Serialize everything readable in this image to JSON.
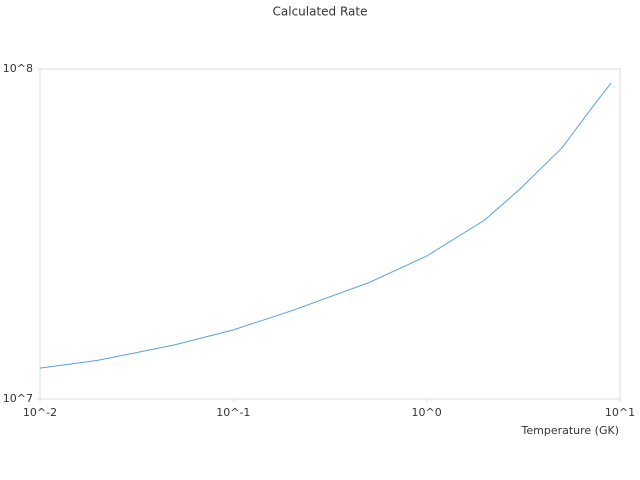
{
  "chart_data": {
    "type": "line",
    "title": "Calculated Rate",
    "x_label": "Temperature (GK)",
    "x_scale": "log",
    "y_scale": "log",
    "xlim": [
      0.01,
      10
    ],
    "ylim": [
      10000000,
      100000000
    ],
    "xticks": [
      {
        "value": 0.01,
        "label": "10^-2"
      },
      {
        "value": 0.1,
        "label": "10^-1"
      },
      {
        "value": 1,
        "label": "10^0"
      },
      {
        "value": 10,
        "label": "10^1"
      }
    ],
    "yticks": [
      {
        "value": 10000000,
        "label": "10^7"
      },
      {
        "value": 100000000,
        "label": "10^8"
      }
    ],
    "grid": false,
    "x": [
      0.01,
      0.02,
      0.05,
      0.1,
      0.2,
      0.5,
      1,
      2,
      3,
      5,
      7,
      9
    ],
    "series": [
      {
        "name": "Rate",
        "color": "#5aa0e0",
        "values": [
          12400000,
          13100000,
          14600000,
          16200000,
          18500000,
          22500000,
          27100000,
          34900000,
          43000000,
          57600000,
          75000000,
          90700000
        ]
      }
    ]
  }
}
